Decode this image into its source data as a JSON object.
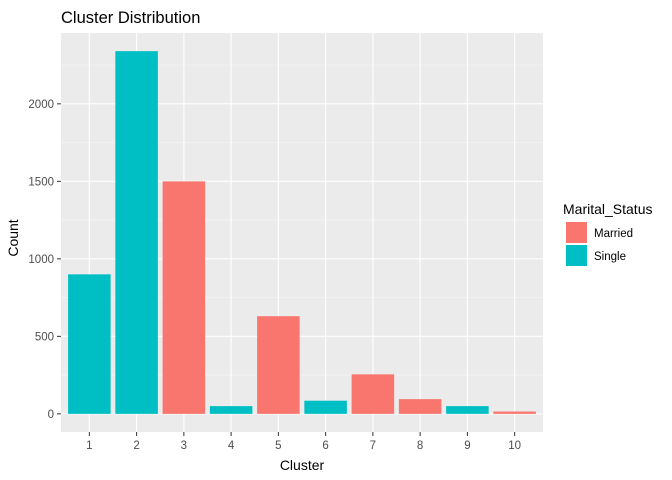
{
  "chart_data": {
    "type": "bar",
    "title": "Cluster Distribution",
    "xlabel": "Cluster",
    "ylabel": "Count",
    "categories": [
      "1",
      "2",
      "3",
      "4",
      "5",
      "6",
      "7",
      "8",
      "9",
      "10"
    ],
    "values": [
      900,
      2340,
      1500,
      50,
      630,
      85,
      255,
      95,
      50,
      15
    ],
    "fill_group": [
      "Single",
      "Single",
      "Married",
      "Single",
      "Married",
      "Single",
      "Married",
      "Married",
      "Single",
      "Married"
    ],
    "y_ticks": [
      0,
      500,
      1000,
      1500,
      2000
    ],
    "y_tick_labels": [
      "0",
      "500",
      "1000",
      "1500",
      "2000"
    ],
    "ylim": [
      -117,
      2457
    ],
    "grid": true,
    "legend": {
      "title": "Marital_Status",
      "position": "right",
      "items": [
        {
          "name": "Married",
          "color": "#F8766D"
        },
        {
          "name": "Single",
          "color": "#00BFC4"
        }
      ]
    },
    "colors": {
      "panel_bg": "#EBEBEB",
      "grid_major": "#FFFFFF",
      "grid_minor": "#F5F5F5"
    }
  }
}
